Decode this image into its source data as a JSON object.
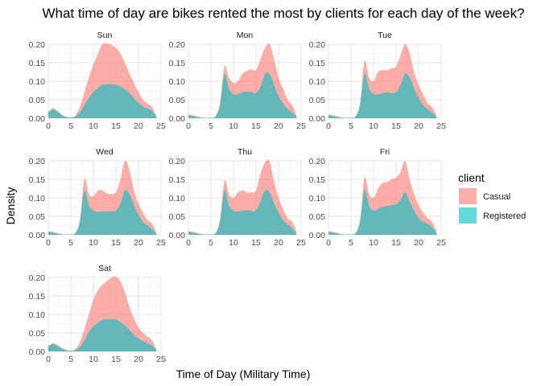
{
  "chart_data": {
    "type": "area",
    "title": "What time of day are bikes rented the most by clients for each day of the week?",
    "xlabel": "Time of Day (Military Time)",
    "ylabel": "Density",
    "xlim": [
      0,
      25
    ],
    "ylim": [
      0,
      0.2
    ],
    "x_ticks": [
      "0",
      "5",
      "10",
      "15",
      "20",
      "25"
    ],
    "y_ticks": [
      "0.00",
      "0.05",
      "0.10",
      "0.15",
      "0.20"
    ],
    "grid": true,
    "legend": {
      "title": "client",
      "placement": "right",
      "entries": [
        {
          "label": "Casual",
          "color": "#F8766D"
        },
        {
          "label": "Registered",
          "color": "#00BFC4"
        }
      ]
    },
    "x": [
      0,
      1,
      2,
      3,
      4,
      5,
      6,
      7,
      8,
      9,
      10,
      11,
      12,
      13,
      14,
      15,
      16,
      17,
      18,
      19,
      20,
      21,
      22,
      23,
      24
    ],
    "panels": [
      {
        "day": "Sun",
        "casual": [
          0.018,
          0.027,
          0.02,
          0.01,
          0.004,
          0.002,
          0.008,
          0.03,
          0.07,
          0.11,
          0.145,
          0.175,
          0.2,
          0.202,
          0.198,
          0.19,
          0.175,
          0.15,
          0.12,
          0.095,
          0.07,
          0.05,
          0.04,
          0.03,
          0.005
        ],
        "registered": [
          0.016,
          0.024,
          0.018,
          0.008,
          0.003,
          0.002,
          0.004,
          0.015,
          0.035,
          0.055,
          0.07,
          0.082,
          0.09,
          0.092,
          0.092,
          0.09,
          0.086,
          0.078,
          0.068,
          0.055,
          0.042,
          0.032,
          0.026,
          0.02,
          0.004
        ]
      },
      {
        "day": "Mon",
        "casual": [
          0.01,
          0.008,
          0.005,
          0.002,
          0.001,
          0.001,
          0.005,
          0.04,
          0.14,
          0.11,
          0.095,
          0.1,
          0.12,
          0.128,
          0.132,
          0.13,
          0.16,
          0.19,
          0.2,
          0.16,
          0.11,
          0.08,
          0.05,
          0.035,
          0.008
        ],
        "registered": [
          0.008,
          0.006,
          0.003,
          0.001,
          0.001,
          0.001,
          0.004,
          0.035,
          0.12,
          0.08,
          0.065,
          0.065,
          0.07,
          0.072,
          0.07,
          0.068,
          0.085,
          0.12,
          0.12,
          0.09,
          0.06,
          0.04,
          0.025,
          0.015,
          0.004
        ]
      },
      {
        "day": "Tue",
        "casual": [
          0.01,
          0.008,
          0.005,
          0.002,
          0.001,
          0.001,
          0.005,
          0.04,
          0.155,
          0.11,
          0.1,
          0.125,
          0.13,
          0.13,
          0.135,
          0.14,
          0.17,
          0.2,
          0.175,
          0.125,
          0.09,
          0.065,
          0.04,
          0.03,
          0.006
        ],
        "registered": [
          0.008,
          0.006,
          0.003,
          0.001,
          0.001,
          0.001,
          0.004,
          0.035,
          0.12,
          0.08,
          0.065,
          0.065,
          0.068,
          0.07,
          0.068,
          0.07,
          0.09,
          0.12,
          0.11,
          0.08,
          0.055,
          0.035,
          0.025,
          0.015,
          0.004
        ]
      },
      {
        "day": "Wed",
        "casual": [
          0.01,
          0.008,
          0.005,
          0.002,
          0.001,
          0.001,
          0.005,
          0.04,
          0.15,
          0.11,
          0.105,
          0.12,
          0.12,
          0.112,
          0.11,
          0.115,
          0.15,
          0.2,
          0.175,
          0.12,
          0.085,
          0.06,
          0.04,
          0.03,
          0.006
        ],
        "registered": [
          0.008,
          0.006,
          0.003,
          0.001,
          0.001,
          0.001,
          0.004,
          0.035,
          0.12,
          0.08,
          0.065,
          0.062,
          0.063,
          0.063,
          0.063,
          0.065,
          0.085,
          0.12,
          0.11,
          0.08,
          0.055,
          0.035,
          0.025,
          0.015,
          0.004
        ]
      },
      {
        "day": "Thu",
        "casual": [
          0.01,
          0.008,
          0.005,
          0.002,
          0.001,
          0.001,
          0.005,
          0.04,
          0.145,
          0.11,
          0.1,
          0.115,
          0.12,
          0.115,
          0.115,
          0.12,
          0.165,
          0.195,
          0.2,
          0.145,
          0.1,
          0.07,
          0.045,
          0.035,
          0.008
        ],
        "registered": [
          0.008,
          0.006,
          0.003,
          0.001,
          0.001,
          0.001,
          0.004,
          0.035,
          0.12,
          0.08,
          0.065,
          0.063,
          0.066,
          0.066,
          0.065,
          0.066,
          0.09,
          0.12,
          0.115,
          0.085,
          0.06,
          0.04,
          0.028,
          0.018,
          0.004
        ]
      },
      {
        "day": "Fri",
        "casual": [
          0.01,
          0.008,
          0.005,
          0.002,
          0.001,
          0.001,
          0.005,
          0.04,
          0.155,
          0.11,
          0.1,
          0.125,
          0.14,
          0.143,
          0.15,
          0.155,
          0.17,
          0.2,
          0.15,
          0.11,
          0.08,
          0.06,
          0.045,
          0.035,
          0.008
        ],
        "registered": [
          0.008,
          0.006,
          0.003,
          0.001,
          0.001,
          0.001,
          0.004,
          0.035,
          0.12,
          0.08,
          0.065,
          0.07,
          0.075,
          0.078,
          0.08,
          0.082,
          0.095,
          0.115,
          0.09,
          0.065,
          0.045,
          0.035,
          0.03,
          0.02,
          0.004
        ]
      },
      {
        "day": "Sat",
        "casual": [
          0.015,
          0.022,
          0.018,
          0.01,
          0.004,
          0.002,
          0.007,
          0.025,
          0.06,
          0.1,
          0.14,
          0.165,
          0.18,
          0.19,
          0.2,
          0.202,
          0.19,
          0.16,
          0.12,
          0.09,
          0.065,
          0.05,
          0.04,
          0.03,
          0.005
        ],
        "registered": [
          0.013,
          0.02,
          0.015,
          0.008,
          0.003,
          0.002,
          0.004,
          0.012,
          0.03,
          0.052,
          0.068,
          0.078,
          0.085,
          0.087,
          0.087,
          0.086,
          0.08,
          0.07,
          0.058,
          0.045,
          0.035,
          0.028,
          0.022,
          0.016,
          0.004
        ]
      }
    ]
  }
}
